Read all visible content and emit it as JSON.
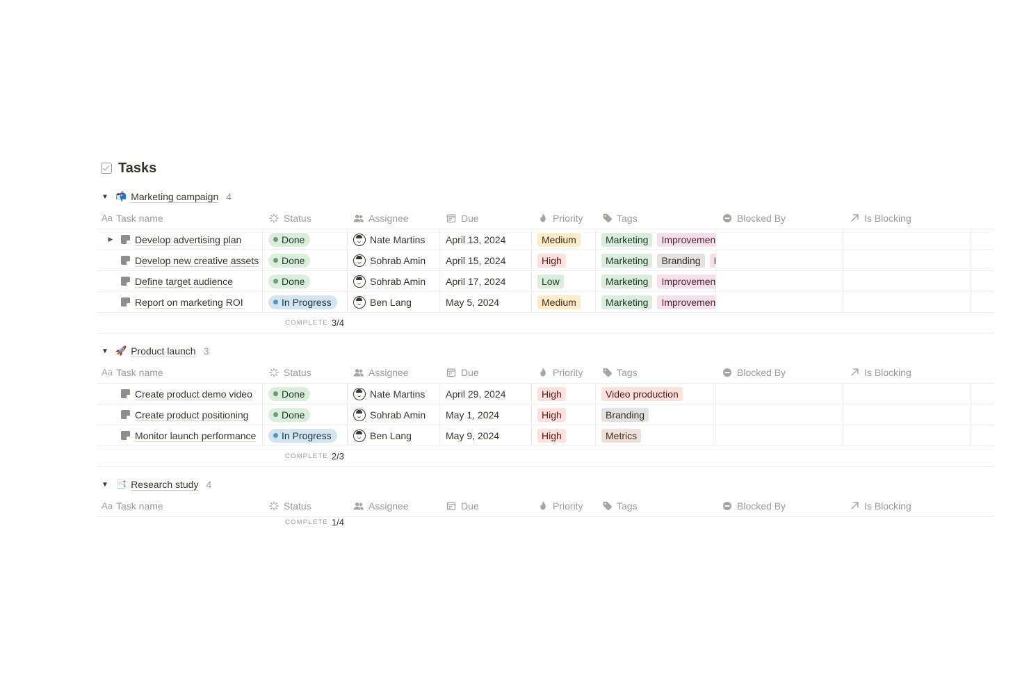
{
  "page": {
    "title": "Tasks"
  },
  "columns": {
    "name": "Task name",
    "status": "Status",
    "assignee": "Assignee",
    "due": "Due",
    "priority": "Priority",
    "tags": "Tags",
    "blocked_by": "Blocked By",
    "is_blocking": "Is Blocking"
  },
  "summary_label": "COMPLETE",
  "groups": [
    {
      "emoji": "📬",
      "name": "Marketing campaign",
      "count": "4",
      "complete": "3/4",
      "rows": [
        {
          "name": "Develop advertising plan",
          "status": "Done",
          "assignee": "Nate Martins",
          "due": "April 13, 2024",
          "priority": "Medium",
          "tags": [
            "Marketing",
            "Improvement"
          ]
        },
        {
          "name": "Develop new creative assets",
          "status": "Done",
          "assignee": "Sohrab Amin",
          "due": "April 15, 2024",
          "priority": "High",
          "tags": [
            "Marketing",
            "Branding",
            "Improvement"
          ]
        },
        {
          "name": "Define target audience",
          "status": "Done",
          "assignee": "Sohrab Amin",
          "due": "April 17, 2024",
          "priority": "Low",
          "tags": [
            "Marketing",
            "Improvement"
          ]
        },
        {
          "name": "Report on marketing ROI",
          "status": "In Progress",
          "assignee": "Ben Lang",
          "due": "May 5, 2024",
          "priority": "Medium",
          "tags": [
            "Marketing",
            "Improvement"
          ]
        }
      ]
    },
    {
      "emoji": "🚀",
      "name": "Product launch",
      "count": "3",
      "complete": "2/3",
      "rows": [
        {
          "name": "Create product demo video",
          "status": "Done",
          "assignee": "Nate Martins",
          "due": "April 29, 2024",
          "priority": "High",
          "tags": [
            "Video production"
          ]
        },
        {
          "name": "Create product positioning",
          "status": "Done",
          "assignee": "Sohrab Amin",
          "due": "May 1, 2024",
          "priority": "High",
          "tags": [
            "Branding"
          ]
        },
        {
          "name": "Monitor launch performance",
          "status": "In Progress",
          "assignee": "Ben Lang",
          "due": "May 9, 2024",
          "priority": "High",
          "tags": [
            "Metrics"
          ]
        }
      ]
    },
    {
      "emoji": "📑",
      "name": "Research study",
      "count": "4",
      "complete": "1/4"
    }
  ],
  "icons": {
    "title": "checkbox-icon",
    "name": "text-aa-icon",
    "status": "status-spinner-icon",
    "assignee": "people-icon",
    "due": "calendar-icon",
    "priority": "flame-icon",
    "tags": "tag-icon",
    "blocked_by": "blocked-icon",
    "is_blocking": "arrow-up-right-icon"
  },
  "colors": {
    "done": "#dbeddb",
    "in_progress": "#d3e5ef",
    "medium": "#fdecc8",
    "high": "#ffe2dd",
    "low": "#dbeddb",
    "tag_marketing": "#dbeddb",
    "tag_improvement": "#f5e0e9",
    "tag_branding": "#e3e2e0",
    "tag_video": "#ffe2dd",
    "tag_metrics": "#eee0da"
  }
}
